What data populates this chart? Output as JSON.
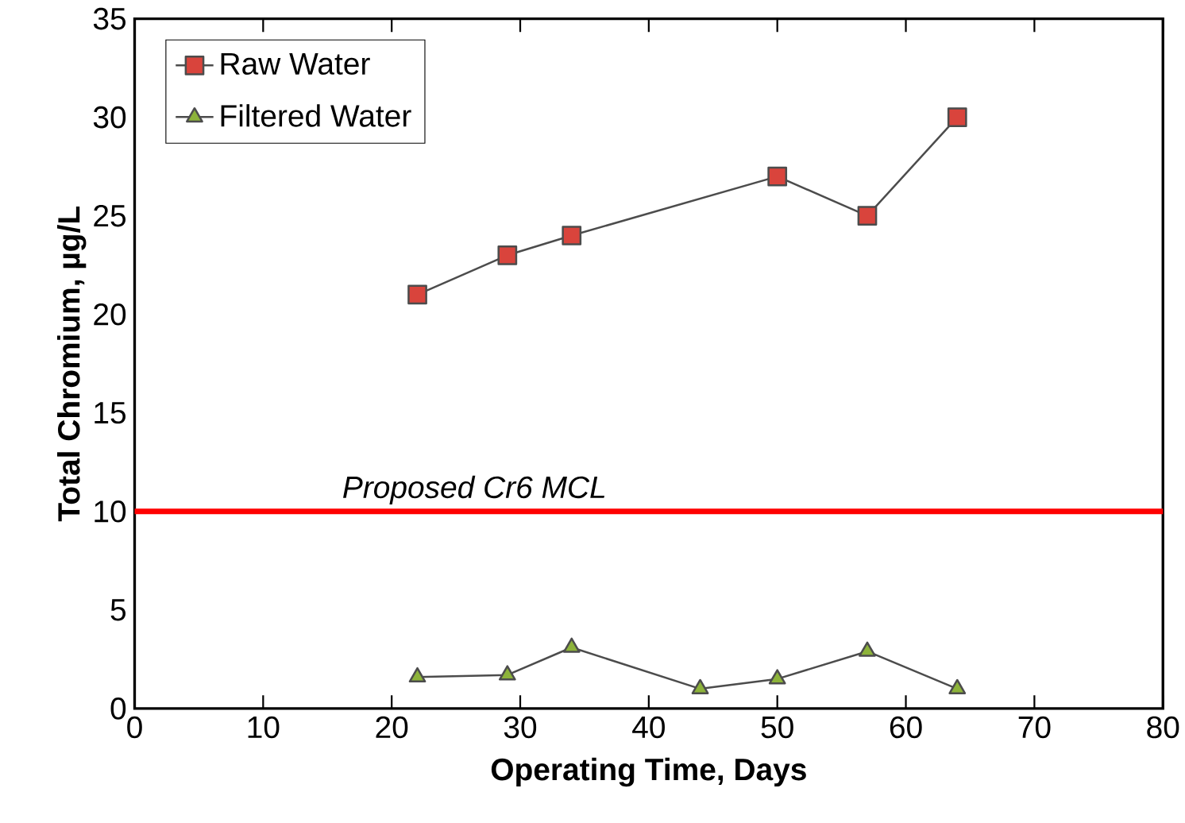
{
  "chart_data": {
    "type": "line",
    "xlabel": "Operating Time, Days",
    "ylabel": "Total Chromium, µg/L",
    "xlim": [
      0,
      80
    ],
    "xticks": [
      0,
      10,
      20,
      30,
      40,
      50,
      60,
      70,
      80
    ],
    "ylim": [
      0,
      35
    ],
    "yticks": [
      0,
      5,
      10,
      15,
      20,
      25,
      30,
      35
    ],
    "legend": "top left",
    "grid": false,
    "series": [
      {
        "name": "Raw Water",
        "color": "#d9443c",
        "marker": "square",
        "x": [
          22,
          29,
          34,
          50,
          57,
          64
        ],
        "values": [
          21,
          23,
          24,
          27,
          25,
          30
        ]
      },
      {
        "name": "Filtered Water",
        "color": "#8db33a",
        "marker": "triangle",
        "x": [
          22,
          29,
          34,
          44,
          50,
          57,
          64
        ],
        "values": [
          1.6,
          1.7,
          3.1,
          1.0,
          1.5,
          2.9,
          1.0
        ]
      }
    ],
    "ref_lines": [
      {
        "axis": "y",
        "value": 10,
        "label": "Proposed Cr6 MCL",
        "color": "#ff0000"
      }
    ]
  }
}
